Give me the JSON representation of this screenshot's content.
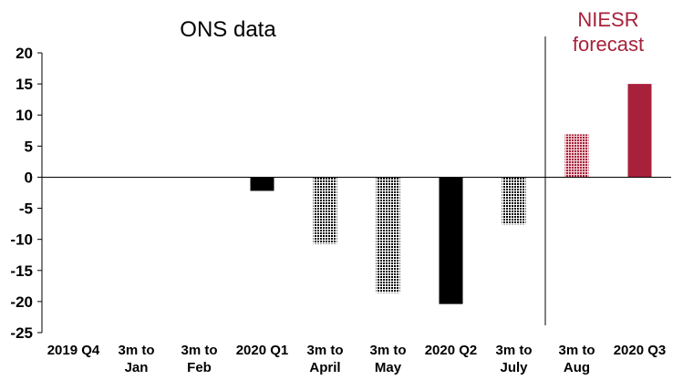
{
  "chart_data": {
    "type": "bar",
    "title": "",
    "xlabel": "",
    "ylabel": "",
    "ylim": [
      -25,
      20
    ],
    "yticks": [
      20,
      15,
      10,
      5,
      0,
      -5,
      -10,
      -15,
      -20,
      -25
    ],
    "grid": false,
    "categories": [
      [
        "2019 Q4"
      ],
      [
        "3m to",
        "Jan"
      ],
      [
        "3m to",
        "Feb"
      ],
      [
        "2020 Q1"
      ],
      [
        "3m to",
        "April"
      ],
      [
        "3m to",
        "May"
      ],
      [
        "2020 Q2"
      ],
      [
        "3m to",
        "July"
      ],
      [
        "3m to",
        "Aug"
      ],
      [
        "2020 Q3"
      ]
    ],
    "values": [
      0,
      0,
      0,
      -2.2,
      -10.7,
      -18.6,
      -20.4,
      -7.6,
      6.9,
      15.0
    ],
    "styles": [
      "solid",
      "dotted",
      "dotted",
      "solid",
      "dotted",
      "dotted",
      "solid",
      "dotted",
      "forecast-dotted",
      "forecast-solid"
    ],
    "annotations": {
      "ons": "ONS data",
      "niesr": [
        "NIESR",
        "forecast"
      ]
    },
    "colors": {
      "actual": "#000000",
      "forecast": "#a8213a"
    }
  }
}
